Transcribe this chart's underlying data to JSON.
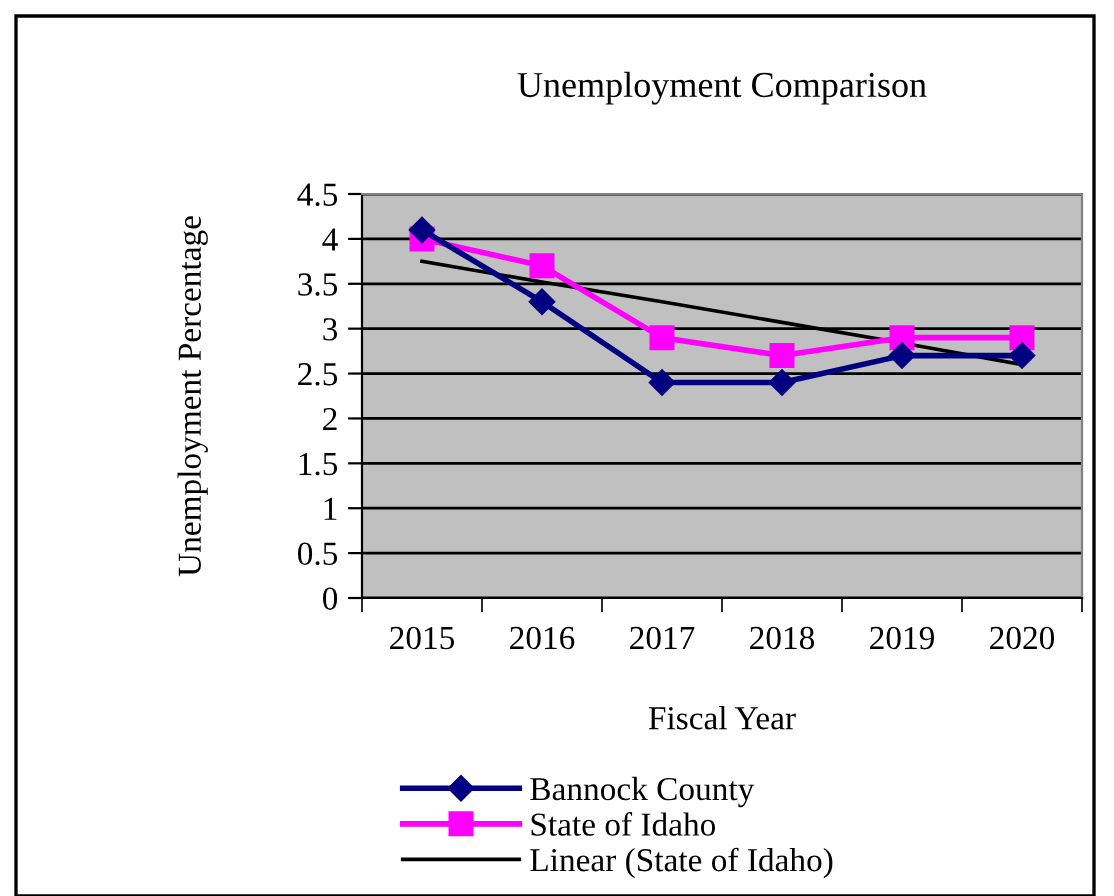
{
  "chart_data": {
    "type": "line",
    "title": "Unemployment Comparison",
    "xlabel": "Fiscal Year",
    "ylabel": "Unemployment Percentage",
    "categories": [
      "2015",
      "2016",
      "2017",
      "2018",
      "2019",
      "2020"
    ],
    "series": [
      {
        "name": "Bannock County",
        "color": "#000080",
        "marker": "diamond",
        "values": [
          4.1,
          3.3,
          2.4,
          2.4,
          2.7,
          2.7
        ]
      },
      {
        "name": "State of Idaho",
        "color": "#ff00ff",
        "marker": "square",
        "values": [
          4.0,
          3.7,
          2.9,
          2.7,
          2.9,
          2.9
        ]
      },
      {
        "name": "Linear (State of Idaho)",
        "color": "#000000",
        "marker": "none",
        "values": [
          3.75,
          3.52,
          3.3,
          3.07,
          2.84,
          2.6
        ]
      }
    ],
    "ylim": [
      0,
      4.5
    ],
    "yticks": [
      0,
      0.5,
      1,
      1.5,
      2,
      2.5,
      3,
      3.5,
      4,
      4.5
    ],
    "grid": "y",
    "legend": "bottom"
  }
}
